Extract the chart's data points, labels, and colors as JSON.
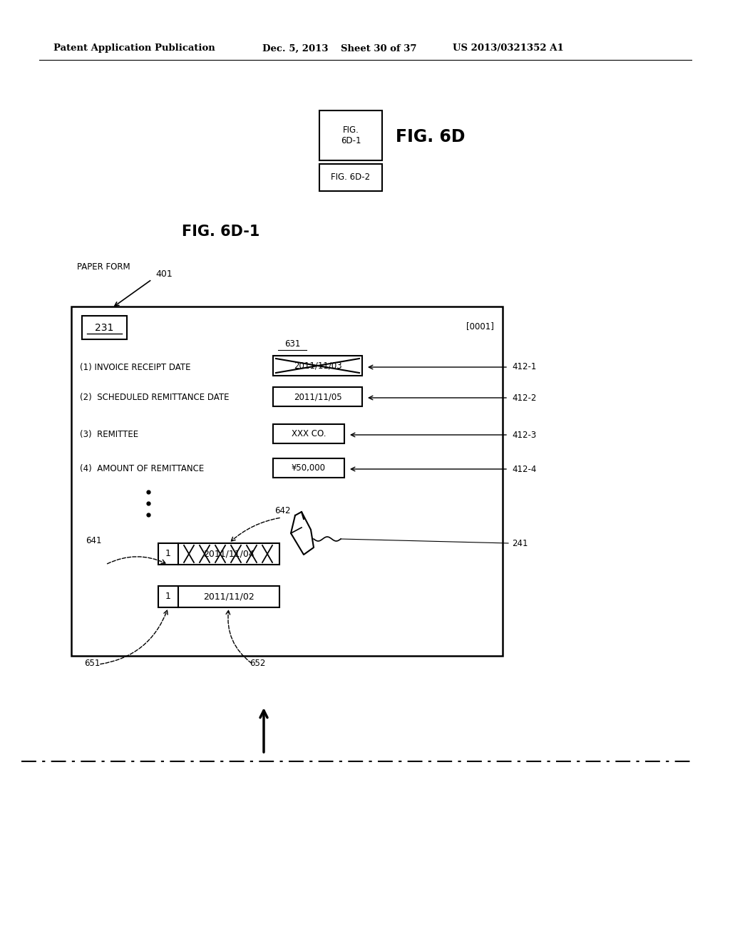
{
  "bg_color": "#ffffff",
  "header_left": "Patent Application Publication",
  "header_date": "Dec. 5, 2013",
  "header_sheet": "Sheet 30 of 37",
  "header_patent": "US 2013/0321352 A1",
  "fig_overview_label": "FIG. 6D",
  "fig_box1_text": "FIG.\n6D-1",
  "fig_box2_text": "FIG. 6D-2",
  "fig_title": "FIG. 6D-1",
  "paper_form_text": "PAPER FORM",
  "ref_401": "401",
  "ref_231": "231",
  "ref_0001": "[0001]",
  "ref_631": "631",
  "row1_label": "(1) INVOICE RECEIPT DATE",
  "row1_value": "2011/11/03",
  "row1_ref": "412-1",
  "row2_label": "(2)  SCHEDULED REMITTANCE DATE",
  "row2_value": "2011/11/05",
  "row2_ref": "412-2",
  "row3_label": "(3)  REMITTEE",
  "row3_value": "XXX CO.",
  "row3_ref": "412-3",
  "row4_label": "(4)  AMOUNT OF REMITTANCE",
  "row4_value": "¥50,000",
  "row4_ref": "412-4",
  "ref_641": "641",
  "ref_642": "642",
  "ref_241": "241",
  "small1_num": "1",
  "small1_val_strike": "2011/11/04",
  "small2_num": "1",
  "small2_val": "2011/11/02",
  "ref_651": "651",
  "ref_652": "652"
}
